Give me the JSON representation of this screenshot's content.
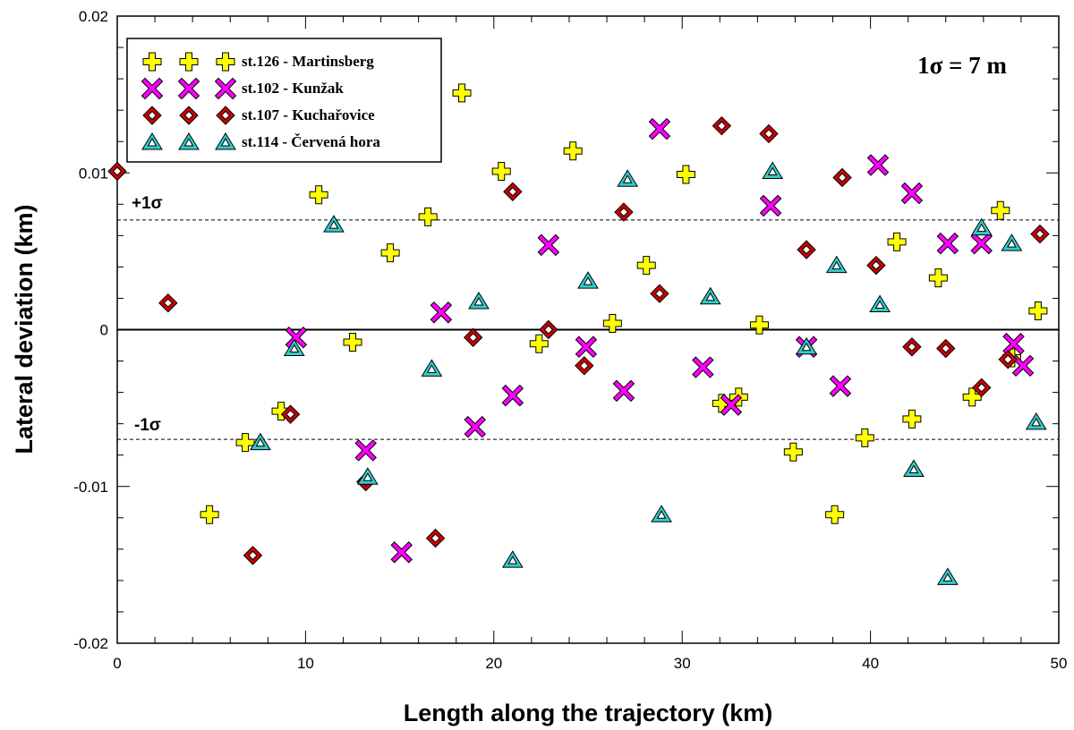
{
  "chart_data": {
    "type": "scatter",
    "xlabel": "Length along the trajectory (km)",
    "ylabel": "Lateral deviation (km)",
    "xlim": [
      0,
      50
    ],
    "ylim": [
      -0.02,
      0.02
    ],
    "xticks": [
      0,
      10,
      20,
      30,
      40,
      50
    ],
    "xtick_labels": [
      "0",
      "10",
      "20",
      "30",
      "40",
      "50"
    ],
    "yticks": [
      -0.02,
      -0.01,
      0,
      0.01,
      0.02
    ],
    "ytick_labels": [
      "-0.02",
      "-0.01",
      "0",
      "0.01",
      "0.02"
    ],
    "sigma_text": "1σ = 7 m",
    "ref_lines": [
      {
        "y": 0.007,
        "label": "+1σ",
        "style": "dashed"
      },
      {
        "y": -0.007,
        "label": "-1σ",
        "style": "dashed"
      },
      {
        "y": 0,
        "label": "",
        "style": "solid"
      }
    ],
    "legend_position": "top-left",
    "series": [
      {
        "name": "st.126 - Martinsberg",
        "marker": "plus",
        "color": "#ffff00",
        "points": [
          [
            4.9,
            -0.0118
          ],
          [
            6.8,
            -0.0072
          ],
          [
            8.7,
            -0.0052
          ],
          [
            10.7,
            0.0086
          ],
          [
            12.5,
            -0.0008
          ],
          [
            14.5,
            0.0049
          ],
          [
            16.5,
            0.0072
          ],
          [
            18.3,
            0.0151
          ],
          [
            20.4,
            0.0101
          ],
          [
            22.4,
            -0.0009
          ],
          [
            24.2,
            0.0114
          ],
          [
            26.3,
            0.0004
          ],
          [
            28.1,
            0.0041
          ],
          [
            30.2,
            0.0099
          ],
          [
            32.1,
            -0.0047
          ],
          [
            33.0,
            -0.0043
          ],
          [
            34.1,
            0.0003
          ],
          [
            35.9,
            -0.0078
          ],
          [
            38.1,
            -0.0118
          ],
          [
            39.7,
            -0.0069
          ],
          [
            41.4,
            0.0056
          ],
          [
            42.2,
            -0.0057
          ],
          [
            43.6,
            0.0033
          ],
          [
            45.4,
            -0.0043
          ],
          [
            46.9,
            0.0076
          ],
          [
            47.5,
            -0.0018
          ],
          [
            48.9,
            0.0012
          ]
        ]
      },
      {
        "name": "st.102 - Kunžak",
        "marker": "x",
        "color": "#ff00ff",
        "points": [
          [
            9.5,
            -0.0005
          ],
          [
            13.2,
            -0.0077
          ],
          [
            15.1,
            -0.0142
          ],
          [
            17.2,
            0.0011
          ],
          [
            19.0,
            -0.0062
          ],
          [
            21.0,
            -0.0042
          ],
          [
            22.9,
            0.0054
          ],
          [
            24.9,
            -0.0011
          ],
          [
            26.9,
            -0.0039
          ],
          [
            28.8,
            0.0128
          ],
          [
            31.1,
            -0.0024
          ],
          [
            32.6,
            -0.0048
          ],
          [
            34.7,
            0.0079
          ],
          [
            36.6,
            -0.0011
          ],
          [
            38.4,
            -0.0036
          ],
          [
            40.4,
            0.0105
          ],
          [
            42.2,
            0.0087
          ],
          [
            44.1,
            0.0055
          ],
          [
            45.9,
            0.0055
          ],
          [
            47.6,
            -0.0009
          ],
          [
            48.1,
            -0.0023
          ]
        ]
      },
      {
        "name": "st.107 - Kuchařovice",
        "marker": "diamond",
        "color": "#cc0000",
        "points": [
          [
            0.0,
            0.0101
          ],
          [
            2.7,
            0.0017
          ],
          [
            7.2,
            -0.0144
          ],
          [
            9.2,
            -0.0054
          ],
          [
            13.2,
            -0.0097
          ],
          [
            16.9,
            -0.0133
          ],
          [
            18.9,
            -0.0005
          ],
          [
            21.0,
            0.0088
          ],
          [
            22.9,
            0.0
          ],
          [
            24.8,
            -0.0023
          ],
          [
            26.9,
            0.0075
          ],
          [
            28.8,
            0.0023
          ],
          [
            32.1,
            0.013
          ],
          [
            34.6,
            0.0125
          ],
          [
            36.6,
            0.0051
          ],
          [
            38.5,
            0.0097
          ],
          [
            40.3,
            0.0041
          ],
          [
            42.2,
            -0.0011
          ],
          [
            44.0,
            -0.0012
          ],
          [
            45.9,
            -0.0037
          ],
          [
            47.3,
            -0.0019
          ],
          [
            49.0,
            0.0061
          ]
        ]
      },
      {
        "name": "st.114 - Červená hora",
        "marker": "triangle",
        "color": "#33cccc",
        "points": [
          [
            7.6,
            -0.0072
          ],
          [
            9.4,
            -0.0012
          ],
          [
            11.5,
            0.0067
          ],
          [
            13.3,
            -0.0094
          ],
          [
            16.7,
            -0.0025
          ],
          [
            19.2,
            0.0018
          ],
          [
            21.0,
            -0.0147
          ],
          [
            25.0,
            0.0031
          ],
          [
            27.1,
            0.0096
          ],
          [
            28.9,
            -0.0118
          ],
          [
            31.5,
            0.0021
          ],
          [
            34.8,
            0.0101
          ],
          [
            36.6,
            -0.0011
          ],
          [
            38.2,
            0.0041
          ],
          [
            40.5,
            0.0016
          ],
          [
            42.3,
            -0.0089
          ],
          [
            44.1,
            -0.0158
          ],
          [
            45.9,
            0.0065
          ],
          [
            47.5,
            0.0055
          ],
          [
            48.8,
            -0.0059
          ]
        ]
      }
    ]
  }
}
